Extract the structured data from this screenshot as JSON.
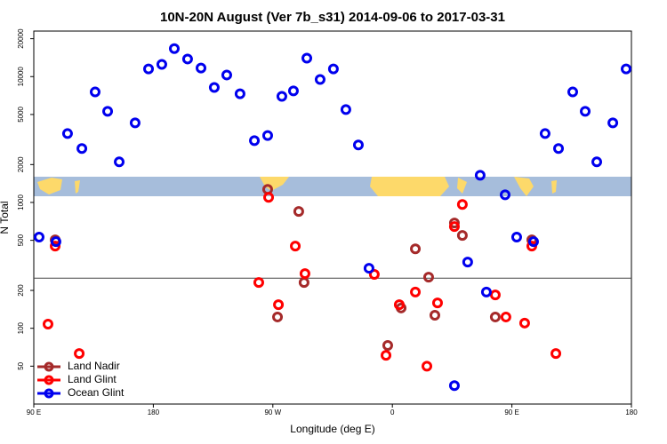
{
  "chart_data": {
    "type": "scatter",
    "title": "10N-20N August (Ver 7b_s31)   2014-09-06 to 2017-03-31",
    "x_label": "Longitude (deg E)",
    "y_label": "N Total",
    "log_y": true,
    "legend": "lower left",
    "xlim": [
      90,
      540
    ],
    "ylim": [
      25,
      23000
    ],
    "xticks": [
      {
        "value": 90,
        "label": "90 E"
      },
      180,
      {
        "value": 270,
        "label": "90 W"
      },
      {
        "value": 360,
        "label": "0"
      },
      {
        "value": 450,
        "label": "90 E"
      },
      {
        "value": 540,
        "label": "180"
      }
    ],
    "yticks": [
      50,
      100,
      200,
      500,
      1000,
      2000,
      5000,
      10000,
      20000
    ],
    "reference_line": 250,
    "series": [
      {
        "name": "Land Nadir",
        "color": "#a52a2a",
        "x": [
          106.1,
          266.1,
          289.5,
          293.5,
          273.5,
          356.5,
          366.6,
          377.3,
          387.3,
          392.0,
          406.7,
          412.7,
          437.5,
          465.0
        ],
        "values": [
          504,
          1270,
          848,
          231,
          123,
          73,
          145,
          428,
          255,
          127,
          686,
          547,
          123,
          504
        ]
      },
      {
        "name": "Land Glint",
        "color": "#ff0000",
        "x": [
          100.7,
          106.1,
          124.2,
          259.4,
          266.8,
          274.2,
          286.9,
          294.2,
          346.4,
          355.2,
          365.2,
          377.3,
          386.0,
          394.0,
          406.7,
          412.7,
          437.5,
          445.5,
          459.6,
          465.0,
          483.1
        ],
        "values": [
          108,
          450,
          63,
          231,
          1097,
          154,
          450,
          272,
          268,
          61,
          154,
          194,
          50,
          159,
          643,
          964,
          184,
          123,
          110,
          450,
          63
        ]
      },
      {
        "name": "Ocean Glint",
        "color": "#0000ee",
        "x": [
          94.0,
          106.7,
          115.4,
          126.2,
          136.2,
          145.6,
          154.3,
          166.3,
          176.4,
          186.4,
          195.8,
          205.8,
          215.9,
          225.9,
          235.3,
          245.3,
          256.1,
          266.1,
          276.8,
          285.5,
          295.6,
          305.6,
          315.6,
          325.0,
          334.4,
          342.4,
          406.7,
          416.7,
          426.1,
          430.8,
          444.9,
          453.6,
          466.3,
          475.0,
          485.1,
          495.8,
          505.2,
          513.9,
          526.0,
          536.0
        ],
        "values": [
          530,
          488,
          3525,
          2680,
          7550,
          5300,
          2100,
          4285,
          11500,
          12500,
          16700,
          13800,
          11700,
          8200,
          10300,
          7300,
          3100,
          3400,
          6970,
          7690,
          14000,
          9480,
          11500,
          5470,
          2860,
          300,
          35,
          336,
          1645,
          194,
          1150,
          530,
          488,
          3525,
          2680,
          7550,
          5300,
          2100,
          4285,
          11500
        ]
      }
    ]
  }
}
